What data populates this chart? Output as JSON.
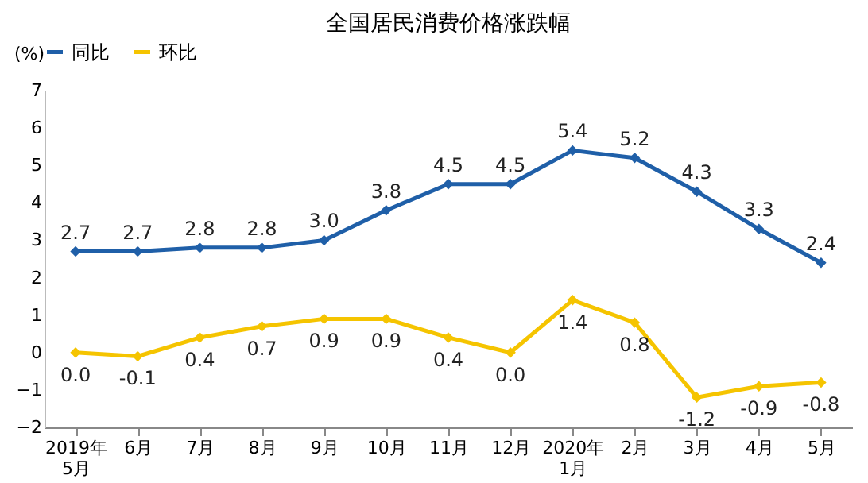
{
  "chart_data": {
    "type": "line",
    "title": "全国居民消费价格涨跌幅",
    "ylabel": "(%)",
    "categories": [
      "2019年\n5月",
      "6月",
      "7月",
      "8月",
      "9月",
      "10月",
      "11月",
      "12月",
      "2020年\n1月",
      "2月",
      "3月",
      "4月",
      "5月"
    ],
    "series": [
      {
        "name": "同比",
        "color": "#1f5fa8",
        "values": [
          2.7,
          2.7,
          2.8,
          2.8,
          3.0,
          3.8,
          4.5,
          4.5,
          5.4,
          5.2,
          4.3,
          3.3,
          2.4
        ],
        "value_labels": [
          "2.7",
          "2.7",
          "2.8",
          "2.8",
          "3.0",
          "3.8",
          "4.5",
          "4.5",
          "5.4",
          "5.2",
          "4.3",
          "3.3",
          "2.4"
        ]
      },
      {
        "name": "环比",
        "color": "#f5c400",
        "values": [
          0.0,
          -0.1,
          0.4,
          0.7,
          0.9,
          0.9,
          0.4,
          0.0,
          1.4,
          0.8,
          -1.2,
          -0.9,
          -0.8
        ],
        "value_labels": [
          "0.0",
          "-0.1",
          "0.4",
          "0.7",
          "0.9",
          "0.9",
          "0.4",
          "0.0",
          "1.4",
          "0.8",
          "-1.2",
          "-0.9",
          "-0.8"
        ]
      }
    ],
    "ylim": [
      -2,
      7
    ],
    "yticks": [
      -2,
      -1,
      0,
      1,
      2,
      3,
      4,
      5,
      6,
      7
    ],
    "grid": false,
    "legend": "top",
    "marker": "diamond",
    "line_style": "solid"
  }
}
